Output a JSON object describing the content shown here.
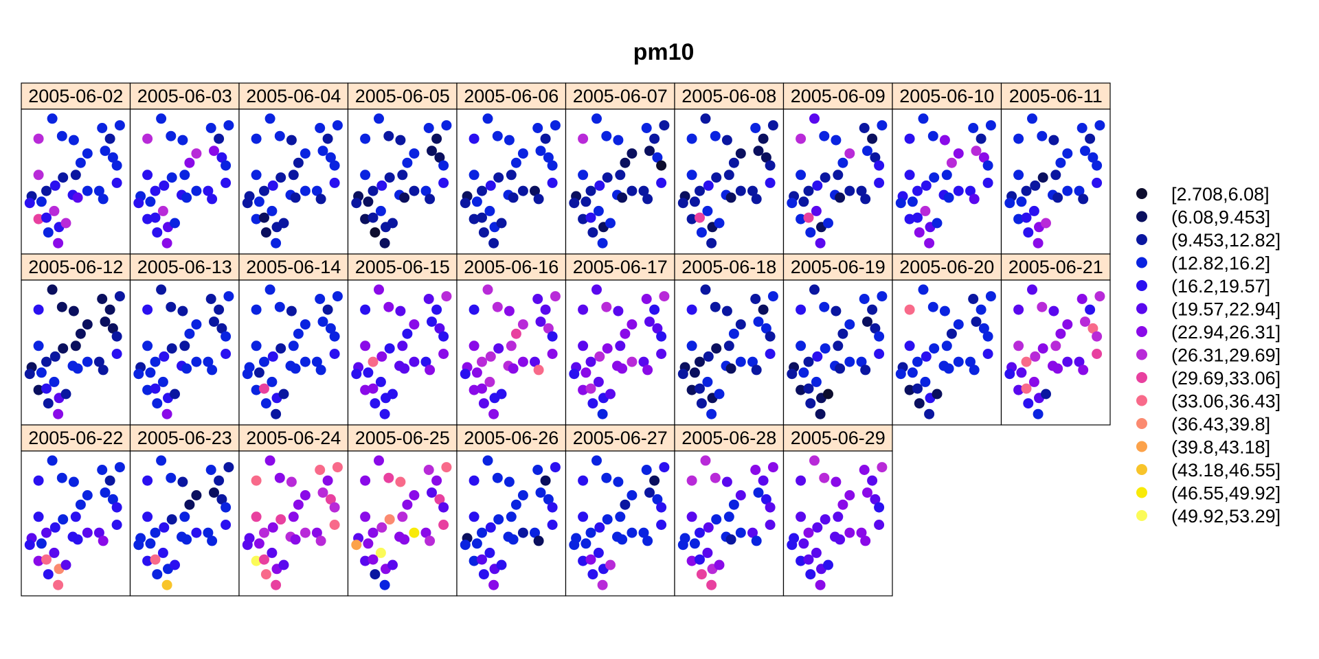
{
  "chart_data": {
    "type": "scatter",
    "title": "pm10",
    "panels": [
      "2005-06-02",
      "2005-06-03",
      "2005-06-04",
      "2005-06-05",
      "2005-06-06",
      "2005-06-07",
      "2005-06-08",
      "2005-06-09",
      "2005-06-10",
      "2005-06-11",
      "2005-06-12",
      "2005-06-13",
      "2005-06-14",
      "2005-06-15",
      "2005-06-16",
      "2005-06-17",
      "2005-06-18",
      "2005-06-19",
      "2005-06-20",
      "2005-06-21",
      "2005-06-22",
      "2005-06-23",
      "2005-06-24",
      "2005-06-25",
      "2005-06-26",
      "2005-06-27",
      "2005-06-28",
      "2005-06-29"
    ],
    "legend": {
      "placement": "right",
      "classes": [
        {
          "label": "[2.708,6.08]",
          "color": "#0d0d2e"
        },
        {
          "label": "(6.08,9.453]",
          "color": "#0a0f5e"
        },
        {
          "label": "(9.453,12.82]",
          "color": "#0a16a0"
        },
        {
          "label": "(12.82,16.2]",
          "color": "#0a23e0"
        },
        {
          "label": "(16.2,19.57]",
          "color": "#2a10f0"
        },
        {
          "label": "(19.57,22.94]",
          "color": "#5a08ee"
        },
        {
          "label": "(22.94,26.31]",
          "color": "#8a0ae8"
        },
        {
          "label": "(26.31,29.69]",
          "color": "#b82ad8"
        },
        {
          "label": "(29.69,33.06]",
          "color": "#e8409f"
        },
        {
          "label": "(33.06,36.43]",
          "color": "#f86a8a"
        },
        {
          "label": "(36.43,39.8]",
          "color": "#fb8a70"
        },
        {
          "label": "(39.8,43.18]",
          "color": "#fca24a"
        },
        {
          "label": "(43.18,46.55]",
          "color": "#f8c42a"
        },
        {
          "label": "(46.55,49.92]",
          "color": "#f8ea08"
        },
        {
          "label": "(49.92,53.29]",
          "color": "#fbfb58"
        }
      ]
    },
    "stations": [
      [
        0.26,
        0.03
      ],
      [
        0.12,
        0.18
      ],
      [
        0.36,
        0.16
      ],
      [
        0.48,
        0.19
      ],
      [
        0.77,
        0.1
      ],
      [
        0.95,
        0.08
      ],
      [
        0.85,
        0.18
      ],
      [
        0.62,
        0.29
      ],
      [
        0.55,
        0.36
      ],
      [
        0.8,
        0.27
      ],
      [
        0.88,
        0.32
      ],
      [
        0.92,
        0.38
      ],
      [
        0.12,
        0.45
      ],
      [
        0.37,
        0.47
      ],
      [
        0.29,
        0.53
      ],
      [
        0.5,
        0.45
      ],
      [
        0.92,
        0.51
      ],
      [
        0.74,
        0.57
      ],
      [
        0.2,
        0.57
      ],
      [
        0.15,
        0.65
      ],
      [
        0.47,
        0.6
      ],
      [
        0.52,
        0.62
      ],
      [
        0.62,
        0.57
      ],
      [
        0.78,
        0.63
      ],
      [
        0.05,
        0.61
      ],
      [
        0.03,
        0.66
      ],
      [
        0.28,
        0.72
      ],
      [
        0.12,
        0.78
      ],
      [
        0.2,
        0.77
      ],
      [
        0.33,
        0.84
      ],
      [
        0.4,
        0.81
      ],
      [
        0.22,
        0.88
      ],
      [
        0.32,
        0.96
      ]
    ],
    "classes_by_day": [
      [
        3,
        7,
        3,
        3,
        3,
        3,
        2,
        3,
        3,
        3,
        3,
        3,
        7,
        2,
        4,
        2,
        4,
        3,
        2,
        3,
        4,
        5,
        3,
        3,
        2,
        4,
        7,
        8,
        4,
        4,
        7,
        3,
        6
      ],
      [
        3,
        7,
        3,
        3,
        3,
        3,
        2,
        7,
        6,
        6,
        4,
        3,
        4,
        3,
        4,
        3,
        4,
        4,
        4,
        3,
        4,
        3,
        3,
        4,
        3,
        4,
        7,
        4,
        4,
        5,
        3,
        4,
        6
      ],
      [
        3,
        3,
        3,
        2,
        3,
        3,
        2,
        3,
        2,
        3,
        3,
        3,
        3,
        2,
        4,
        2,
        4,
        3,
        2,
        3,
        3,
        2,
        3,
        2,
        2,
        2,
        3,
        3,
        1,
        2,
        2,
        1,
        3
      ],
      [
        3,
        3,
        2,
        2,
        3,
        3,
        1,
        3,
        3,
        1,
        1,
        3,
        3,
        2,
        4,
        2,
        4,
        3,
        2,
        1,
        3,
        1,
        2,
        2,
        1,
        2,
        3,
        1,
        2,
        2,
        2,
        0,
        1
      ],
      [
        3,
        4,
        3,
        3,
        3,
        3,
        2,
        3,
        3,
        3,
        3,
        3,
        3,
        2,
        4,
        2,
        4,
        1,
        2,
        3,
        3,
        2,
        2,
        2,
        1,
        2,
        3,
        2,
        2,
        3,
        2,
        2,
        2
      ],
      [
        3,
        7,
        3,
        3,
        3,
        2,
        2,
        1,
        1,
        1,
        3,
        0,
        3,
        2,
        4,
        2,
        4,
        2,
        2,
        2,
        3,
        1,
        2,
        2,
        1,
        2,
        3,
        2,
        4,
        1,
        3,
        2,
        3
      ],
      [
        2,
        3,
        3,
        2,
        3,
        2,
        1,
        1,
        2,
        1,
        1,
        2,
        3,
        2,
        4,
        2,
        4,
        2,
        2,
        2,
        3,
        1,
        2,
        2,
        1,
        2,
        3,
        2,
        8,
        1,
        3,
        3,
        2
      ],
      [
        5,
        7,
        3,
        3,
        2,
        3,
        1,
        7,
        3,
        3,
        2,
        4,
        3,
        2,
        4,
        2,
        4,
        2,
        2,
        2,
        3,
        1,
        2,
        2,
        2,
        3,
        5,
        3,
        8,
        1,
        3,
        3,
        5
      ],
      [
        3,
        4,
        3,
        6,
        3,
        3,
        2,
        6,
        7,
        7,
        6,
        3,
        4,
        3,
        4,
        3,
        4,
        4,
        4,
        3,
        4,
        3,
        4,
        5,
        4,
        3,
        7,
        4,
        4,
        5,
        3,
        6,
        6
      ],
      [
        3,
        3,
        3,
        2,
        3,
        3,
        2,
        3,
        3,
        3,
        3,
        3,
        3,
        1,
        2,
        2,
        4,
        3,
        2,
        3,
        3,
        2,
        3,
        2,
        2,
        3,
        4,
        3,
        4,
        6,
        7,
        4,
        6
      ],
      [
        1,
        4,
        1,
        1,
        1,
        2,
        1,
        1,
        1,
        1,
        1,
        2,
        3,
        1,
        2,
        1,
        4,
        2,
        2,
        3,
        3,
        3,
        3,
        2,
        1,
        2,
        3,
        1,
        4,
        5,
        2,
        2,
        6
      ],
      [
        2,
        4,
        2,
        2,
        2,
        3,
        2,
        3,
        3,
        2,
        2,
        3,
        3,
        2,
        4,
        2,
        4,
        3,
        3,
        3,
        4,
        3,
        3,
        3,
        2,
        3,
        3,
        3,
        4,
        4,
        2,
        3,
        6
      ],
      [
        3,
        3,
        3,
        2,
        3,
        3,
        2,
        3,
        3,
        3,
        3,
        3,
        3,
        2,
        4,
        3,
        4,
        3,
        3,
        2,
        3,
        3,
        3,
        3,
        3,
        3,
        3,
        3,
        8,
        4,
        2,
        3,
        2
      ],
      [
        6,
        4,
        6,
        5,
        5,
        7,
        4,
        6,
        4,
        4,
        5,
        4,
        6,
        4,
        6,
        5,
        6,
        4,
        9,
        4,
        5,
        5,
        5,
        6,
        5,
        4,
        4,
        6,
        6,
        4,
        4,
        4,
        4
      ],
      [
        7,
        4,
        7,
        6,
        5,
        7,
        5,
        7,
        8,
        5,
        7,
        4,
        6,
        5,
        7,
        7,
        6,
        5,
        7,
        6,
        7,
        6,
        6,
        9,
        6,
        4,
        7,
        6,
        6,
        4,
        4,
        5,
        6
      ],
      [
        5,
        5,
        7,
        5,
        6,
        7,
        4,
        6,
        6,
        5,
        5,
        4,
        5,
        6,
        7,
        5,
        5,
        5,
        5,
        6,
        6,
        6,
        7,
        6,
        5,
        4,
        5,
        6,
        7,
        4,
        5,
        4,
        3
      ],
      [
        2,
        4,
        2,
        2,
        2,
        3,
        1,
        2,
        3,
        3,
        3,
        2,
        3,
        1,
        2,
        2,
        4,
        3,
        1,
        1,
        3,
        1,
        3,
        2,
        1,
        2,
        3,
        1,
        2,
        1,
        3,
        2,
        3
      ],
      [
        2,
        4,
        3,
        2,
        3,
        3,
        2,
        3,
        2,
        1,
        2,
        3,
        3,
        3,
        4,
        2,
        4,
        3,
        2,
        3,
        3,
        2,
        3,
        2,
        1,
        2,
        3,
        1,
        2,
        1,
        0,
        2,
        1
      ],
      [
        3,
        9,
        3,
        3,
        2,
        3,
        3,
        3,
        2,
        2,
        3,
        3,
        4,
        3,
        4,
        3,
        4,
        3,
        3,
        3,
        3,
        3,
        3,
        3,
        2,
        3,
        3,
        1,
        2,
        4,
        1,
        1,
        2
      ],
      [
        5,
        5,
        7,
        5,
        6,
        7,
        4,
        6,
        6,
        7,
        9,
        7,
        7,
        6,
        7,
        7,
        8,
        5,
        9,
        5,
        6,
        6,
        5,
        6,
        5,
        4,
        6,
        5,
        9,
        5,
        2,
        4,
        3
      ],
      [
        3,
        4,
        3,
        3,
        3,
        3,
        2,
        3,
        3,
        3,
        3,
        4,
        4,
        3,
        4,
        4,
        4,
        5,
        5,
        3,
        4,
        4,
        5,
        6,
        5,
        4,
        5,
        6,
        9,
        10,
        5,
        4,
        9
      ],
      [
        3,
        4,
        3,
        2,
        3,
        2,
        2,
        1,
        1,
        1,
        2,
        3,
        4,
        2,
        4,
        3,
        4,
        3,
        3,
        3,
        3,
        3,
        4,
        3,
        3,
        3,
        4,
        4,
        9,
        3,
        4,
        3,
        12
      ],
      [
        6,
        9,
        6,
        7,
        9,
        9,
        6,
        6,
        6,
        7,
        8,
        7,
        8,
        8,
        6,
        6,
        9,
        6,
        7,
        6,
        7,
        6,
        7,
        7,
        5,
        5,
        5,
        14,
        8,
        6,
        5,
        9,
        8
      ],
      [
        6,
        6,
        8,
        9,
        7,
        9,
        6,
        6,
        6,
        5,
        8,
        5,
        6,
        10,
        7,
        7,
        8,
        6,
        6,
        6,
        6,
        6,
        13,
        7,
        5,
        11,
        14,
        5,
        6,
        6,
        5,
        2,
        3
      ],
      [
        3,
        4,
        3,
        3,
        3,
        4,
        1,
        3,
        3,
        3,
        3,
        4,
        4,
        3,
        4,
        3,
        4,
        3,
        3,
        3,
        3,
        3,
        2,
        1,
        1,
        3,
        4,
        3,
        5,
        5,
        4,
        4,
        6
      ],
      [
        3,
        4,
        3,
        3,
        3,
        4,
        1,
        3,
        2,
        2,
        3,
        4,
        4,
        3,
        4,
        3,
        4,
        3,
        3,
        3,
        3,
        3,
        3,
        3,
        3,
        3,
        4,
        4,
        6,
        4,
        7,
        4,
        7
      ],
      [
        7,
        7,
        7,
        5,
        6,
        6,
        5,
        5,
        3,
        3,
        4,
        5,
        5,
        3,
        5,
        3,
        5,
        5,
        4,
        3,
        3,
        2,
        3,
        3,
        3,
        3,
        5,
        6,
        4,
        7,
        6,
        8,
        8
      ],
      [
        7,
        5,
        7,
        6,
        6,
        7,
        5,
        6,
        6,
        6,
        5,
        4,
        5,
        5,
        5,
        5,
        5,
        6,
        6,
        5,
        5,
        5,
        6,
        6,
        4,
        4,
        5,
        4,
        5,
        5,
        4,
        4,
        6
      ]
    ]
  }
}
